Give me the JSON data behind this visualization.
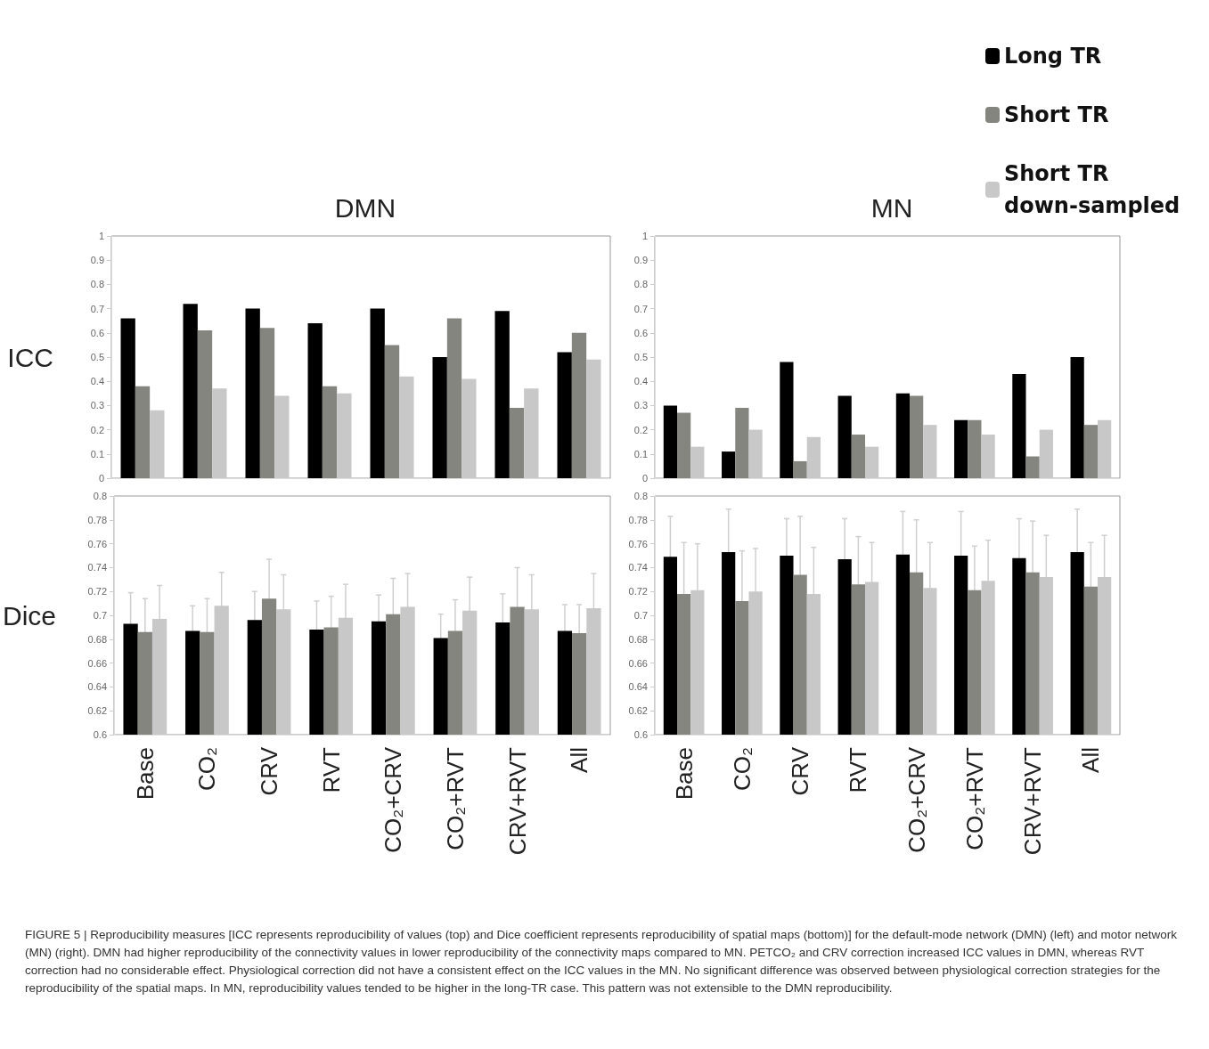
{
  "chart_data": [
    {
      "type": "bar",
      "title": "DMN",
      "ylabel": "ICC",
      "categories": [
        "Base",
        "CO₂",
        "CRV",
        "RVT",
        "CO₂+CRV",
        "CO₂+RVT",
        "CRV+RVT",
        "All"
      ],
      "tick_labels": "y",
      "grid": false,
      "legend": false,
      "ylim": [
        0,
        1
      ],
      "yticks": [
        0,
        0.1,
        0.2,
        0.3,
        0.4,
        0.5,
        0.6,
        0.7,
        0.8,
        0.9,
        1
      ],
      "annotations": [
        "FIGURE 5 | Reproducibility measures [ICC represents reproducibility of values (top) and Dice coefficient represents reproducibility of spatial maps (bottom)] for the default-mode network (DMN) (left) and motor network (MN) (right). DMN had higher reproducibility of the connectivity values in lower reproducibility of the connectivity maps compared to MN. PETCO₂ and CRV correction increased ICC values in DMN, whereas RVT correction had no considerable effect. Physiological correction did not have a consistent effect on the ICC values in the MN. No significant difference was observed between physiological correction strategies for the reproducibility of the spatial maps. In MN, reproducibility values tended to be higher in the long-TR case. This pattern was not extensible to the DMN reproducibility."
      ],
      "series": [
        {
          "color": "#000000",
          "values": [
            0.66,
            0.72,
            0.7,
            0.64,
            0.7,
            0.5,
            0.69,
            0.52
          ]
        },
        {
          "color": "#858580",
          "values": [
            0.38,
            0.61,
            0.62,
            0.38,
            0.55,
            0.66,
            0.29,
            0.6
          ]
        },
        {
          "color": "#c8c8c8",
          "values": [
            0.28,
            0.37,
            0.34,
            0.35,
            0.42,
            0.41,
            0.37,
            0.49
          ]
        }
      ]
    },
    {
      "type": "bar",
      "title": "MN",
      "categories": [
        "Base",
        "CO₂",
        "CRV",
        "RVT",
        "CO₂+CRV",
        "CO₂+RVT",
        "CRV+RVT",
        "All"
      ],
      "tick_labels": "y",
      "grid": false,
      "legend": "top right",
      "ylim": [
        0,
        1
      ],
      "yticks": [
        0,
        0.1,
        0.2,
        0.3,
        0.4,
        0.5,
        0.6,
        0.7,
        0.8,
        0.9,
        1
      ],
      "series": [
        {
          "name": "Long TR",
          "color": "#000000",
          "values": [
            0.3,
            0.11,
            0.48,
            0.34,
            0.35,
            0.24,
            0.43,
            0.5
          ]
        },
        {
          "name": "Short TR",
          "color": "#858580",
          "values": [
            0.27,
            0.29,
            0.07,
            0.18,
            0.34,
            0.24,
            0.09,
            0.22
          ]
        },
        {
          "name": "Short TR down-sampled",
          "color": "#c8c8c8",
          "values": [
            0.13,
            0.2,
            0.17,
            0.13,
            0.22,
            0.18,
            0.2,
            0.24
          ]
        }
      ]
    },
    {
      "type": "bar",
      "ylabel": "Dice",
      "categories": [
        "Base",
        "CO₂",
        "CRV",
        "RVT",
        "CO₂+CRV",
        "CO₂+RVT",
        "CRV+RVT",
        "All"
      ],
      "grid": false,
      "legend": false,
      "ylim": [
        0.6,
        0.8
      ],
      "yticks": [
        0.6,
        0.62,
        0.64,
        0.66,
        0.68,
        0.7,
        0.72,
        0.74,
        0.76,
        0.78,
        0.8
      ],
      "series": [
        {
          "color": "#000000",
          "values": [
            0.693,
            0.687,
            0.696,
            0.688,
            0.695,
            0.681,
            0.694,
            0.687
          ],
          "errors": [
            0.026,
            0.021,
            0.024,
            0.024,
            0.022,
            0.02,
            0.024,
            0.022
          ]
        },
        {
          "color": "#858580",
          "values": [
            0.686,
            0.686,
            0.714,
            0.69,
            0.701,
            0.687,
            0.707,
            0.685
          ],
          "errors": [
            0.028,
            0.028,
            0.033,
            0.026,
            0.03,
            0.026,
            0.033,
            0.024
          ]
        },
        {
          "color": "#c8c8c8",
          "values": [
            0.697,
            0.708,
            0.705,
            0.698,
            0.707,
            0.704,
            0.705,
            0.706
          ],
          "errors": [
            0.028,
            0.028,
            0.029,
            0.028,
            0.028,
            0.028,
            0.029,
            0.029
          ]
        }
      ]
    },
    {
      "type": "bar",
      "categories": [
        "Base",
        "CO₂",
        "CRV",
        "RVT",
        "CO₂+CRV",
        "CO₂+RVT",
        "CRV+RVT",
        "All"
      ],
      "grid": false,
      "legend": false,
      "ylim": [
        0.6,
        0.8
      ],
      "yticks": [
        0.6,
        0.62,
        0.64,
        0.66,
        0.68,
        0.7,
        0.72,
        0.74,
        0.76,
        0.78,
        0.8
      ],
      "series": [
        {
          "color": "#000000",
          "values": [
            0.749,
            0.753,
            0.75,
            0.747,
            0.751,
            0.75,
            0.748,
            0.753
          ],
          "errors": [
            0.034,
            0.036,
            0.031,
            0.034,
            0.036,
            0.037,
            0.033,
            0.036
          ]
        },
        {
          "color": "#858580",
          "values": [
            0.718,
            0.712,
            0.734,
            0.726,
            0.736,
            0.721,
            0.736,
            0.724
          ],
          "errors": [
            0.043,
            0.042,
            0.049,
            0.04,
            0.044,
            0.037,
            0.043,
            0.037
          ]
        },
        {
          "color": "#c8c8c8",
          "values": [
            0.721,
            0.72,
            0.718,
            0.728,
            0.723,
            0.729,
            0.732,
            0.732
          ],
          "errors": [
            0.039,
            0.036,
            0.039,
            0.033,
            0.038,
            0.034,
            0.035,
            0.035
          ]
        }
      ]
    }
  ]
}
